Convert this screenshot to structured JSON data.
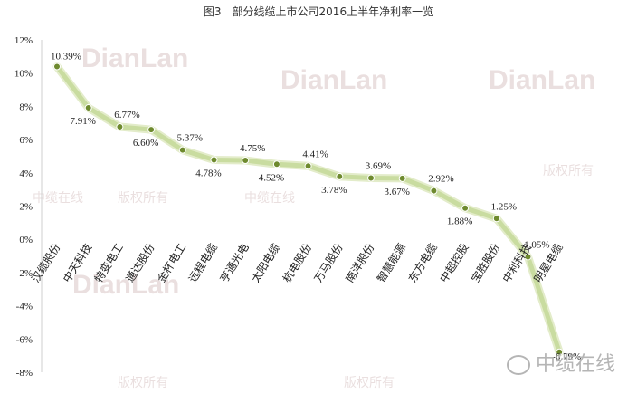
{
  "chart_data": {
    "type": "line",
    "title": "图3　部分线缆上市公司2016上半年净利率一览",
    "categories": [
      "汉缆股份",
      "中天科技",
      "特变电工",
      "通达股份",
      "金杯电工",
      "远程电缆",
      "亨通光电",
      "太阳电缆",
      "杭电股份",
      "万马股份",
      "南洋股份",
      "智慧能源",
      "东方电缆",
      "中超控股",
      "宝胜股份",
      "中利科技",
      "明星电缆"
    ],
    "series": [
      {
        "values": [
          10.39,
          7.91,
          6.77,
          6.6,
          5.37,
          4.78,
          4.75,
          4.52,
          4.41,
          3.78,
          3.69,
          3.67,
          2.92,
          1.88,
          1.25,
          -1.05,
          -6.79
        ],
        "labels": [
          "10.39%",
          "7.91%",
          "6.77%",
          "6.60%",
          "5.37%",
          "4.78%",
          "4.75%",
          "4.52%",
          "4.41%",
          "3.78%",
          "3.69%",
          "3.67%",
          "2.92%",
          "1.88%",
          "1.25%",
          "-1.05%",
          "-6.79%"
        ]
      }
    ],
    "yticks": [
      "12%",
      "10%",
      "8%",
      "6%",
      "4%",
      "2%",
      "0%",
      "-2%",
      "-4%",
      "-6%",
      "-8%"
    ],
    "ylim": [
      -8,
      12
    ],
    "grid": false,
    "colors": {
      "line": "#c9dcA0",
      "marker": "#6e8a2e",
      "text": "#222222"
    }
  },
  "watermarks": {
    "latin": "DianLan",
    "cn1": "中缆在线",
    "cn2": "版权所有"
  },
  "brand": {
    "text": "中缆在线",
    "icon": "wechat-icon"
  }
}
